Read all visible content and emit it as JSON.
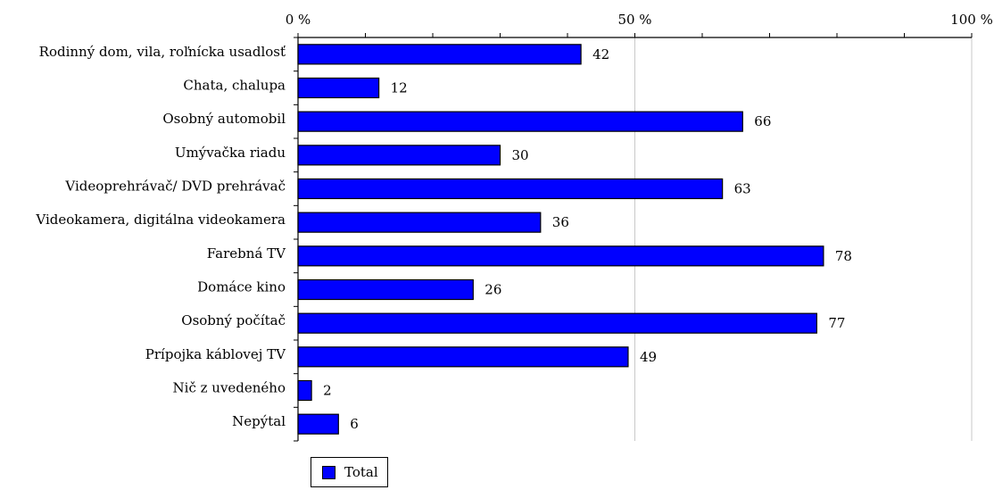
{
  "chart_data": {
    "type": "bar",
    "orientation": "horizontal",
    "categories": [
      "Rodinný dom, vila, roľnícka usadlosť",
      "Chata, chalupa",
      "Osobný automobil",
      "Umývačka riadu",
      "Videoprehrávač/ DVD prehrávač",
      "Videokamera, digitálna videokamera",
      "Farebná TV",
      "Domáce kino",
      "Osobný počítač",
      "Prípojka káblovej TV",
      "Nič z uvedeného",
      "Nepýtal"
    ],
    "series": [
      {
        "name": "Total",
        "values": [
          42,
          12,
          66,
          30,
          63,
          36,
          78,
          26,
          77,
          49,
          2,
          6
        ],
        "color": "#0000ff"
      }
    ],
    "xlim": [
      0,
      100
    ],
    "x_ticks": [
      "0 %",
      "50 %",
      "100 %"
    ],
    "x_tick_values": [
      0,
      50,
      100
    ],
    "axis_position": "top",
    "grid": true,
    "legend_position": "bottom-left"
  }
}
